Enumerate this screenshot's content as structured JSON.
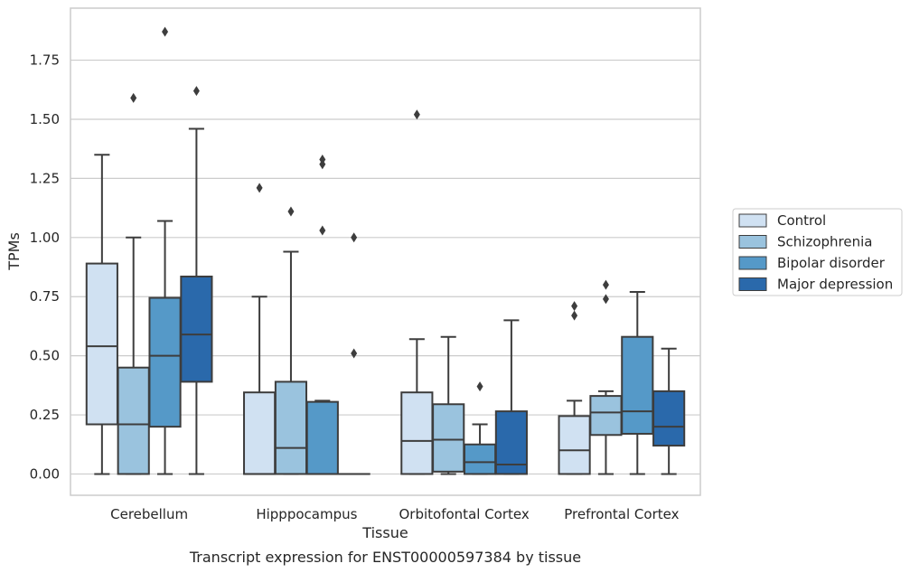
{
  "chart_data": {
    "type": "box",
    "caption": "Transcript expression for ENST00000597384 by tissue",
    "xlabel": "Tissue",
    "ylabel": "TPMs",
    "ylim": [
      -0.09,
      1.97
    ],
    "yticks": [
      "0.00",
      "0.25",
      "0.50",
      "0.75",
      "1.00",
      "1.25",
      "1.50",
      "1.75"
    ],
    "ytick_values": [
      0,
      0.25,
      0.5,
      0.75,
      1.0,
      1.25,
      1.5,
      1.75
    ],
    "grid": "horizontal",
    "legend_position": "right",
    "categories": [
      "Cerebellum",
      "Hipppocampus",
      "Orbitofontal Cortex",
      "Prefrontal Cortex"
    ],
    "series": [
      {
        "name": "Control",
        "color": "#d0e1f2",
        "boxes": [
          {
            "whislo": 0.0,
            "q1": 0.21,
            "med": 0.54,
            "q3": 0.89,
            "whishi": 1.35,
            "fliers": []
          },
          {
            "whislo": 0.0,
            "q1": 0.0,
            "med": 0.0,
            "q3": 0.345,
            "whishi": 0.75,
            "fliers": [
              1.21
            ]
          },
          {
            "whislo": 0.0,
            "q1": 0.0,
            "med": 0.14,
            "q3": 0.345,
            "whishi": 0.57,
            "fliers": [
              1.52
            ]
          },
          {
            "whislo": 0.0,
            "q1": 0.0,
            "med": 0.1,
            "q3": 0.245,
            "whishi": 0.31,
            "fliers": [
              0.67,
              0.71
            ]
          }
        ]
      },
      {
        "name": "Schizophrenia",
        "color": "#9ac3de",
        "boxes": [
          {
            "whislo": 0.0,
            "q1": 0.0,
            "med": 0.21,
            "q3": 0.45,
            "whishi": 1.0,
            "fliers": [
              1.59
            ]
          },
          {
            "whislo": 0.0,
            "q1": 0.0,
            "med": 0.11,
            "q3": 0.39,
            "whishi": 0.94,
            "fliers": [
              1.11
            ]
          },
          {
            "whislo": 0.0,
            "q1": 0.01,
            "med": 0.145,
            "q3": 0.295,
            "whishi": 0.58,
            "fliers": []
          },
          {
            "whislo": 0.0,
            "q1": 0.165,
            "med": 0.26,
            "q3": 0.33,
            "whishi": 0.35,
            "fliers": [
              0.74,
              0.8
            ]
          }
        ]
      },
      {
        "name": "Bipolar disorder",
        "color": "#5599c8",
        "boxes": [
          {
            "whislo": 0.0,
            "q1": 0.2,
            "med": 0.5,
            "q3": 0.745,
            "whishi": 1.07,
            "fliers": [
              1.87
            ]
          },
          {
            "whislo": 0.0,
            "q1": 0.0,
            "med": 0.0,
            "q3": 0.305,
            "whishi": 0.31,
            "fliers": [
              1.03,
              1.31,
              1.33
            ]
          },
          {
            "whislo": 0.0,
            "q1": 0.0,
            "med": 0.05,
            "q3": 0.125,
            "whishi": 0.21,
            "fliers": [
              0.37
            ]
          },
          {
            "whislo": 0.0,
            "q1": 0.17,
            "med": 0.265,
            "q3": 0.58,
            "whishi": 0.77,
            "fliers": []
          }
        ]
      },
      {
        "name": "Major depression",
        "color": "#2a69ab",
        "boxes": [
          {
            "whislo": 0.0,
            "q1": 0.39,
            "med": 0.59,
            "q3": 0.835,
            "whishi": 1.46,
            "fliers": [
              1.62
            ]
          },
          {
            "whislo": 0.0,
            "q1": 0.0,
            "med": 0.0,
            "q3": 0.0,
            "whishi": 0.0,
            "fliers": [
              0.51,
              1.0
            ]
          },
          {
            "whislo": 0.0,
            "q1": 0.0,
            "med": 0.04,
            "q3": 0.265,
            "whishi": 0.65,
            "fliers": []
          },
          {
            "whislo": 0.0,
            "q1": 0.12,
            "med": 0.2,
            "q3": 0.35,
            "whishi": 0.53,
            "fliers": []
          }
        ]
      }
    ]
  }
}
